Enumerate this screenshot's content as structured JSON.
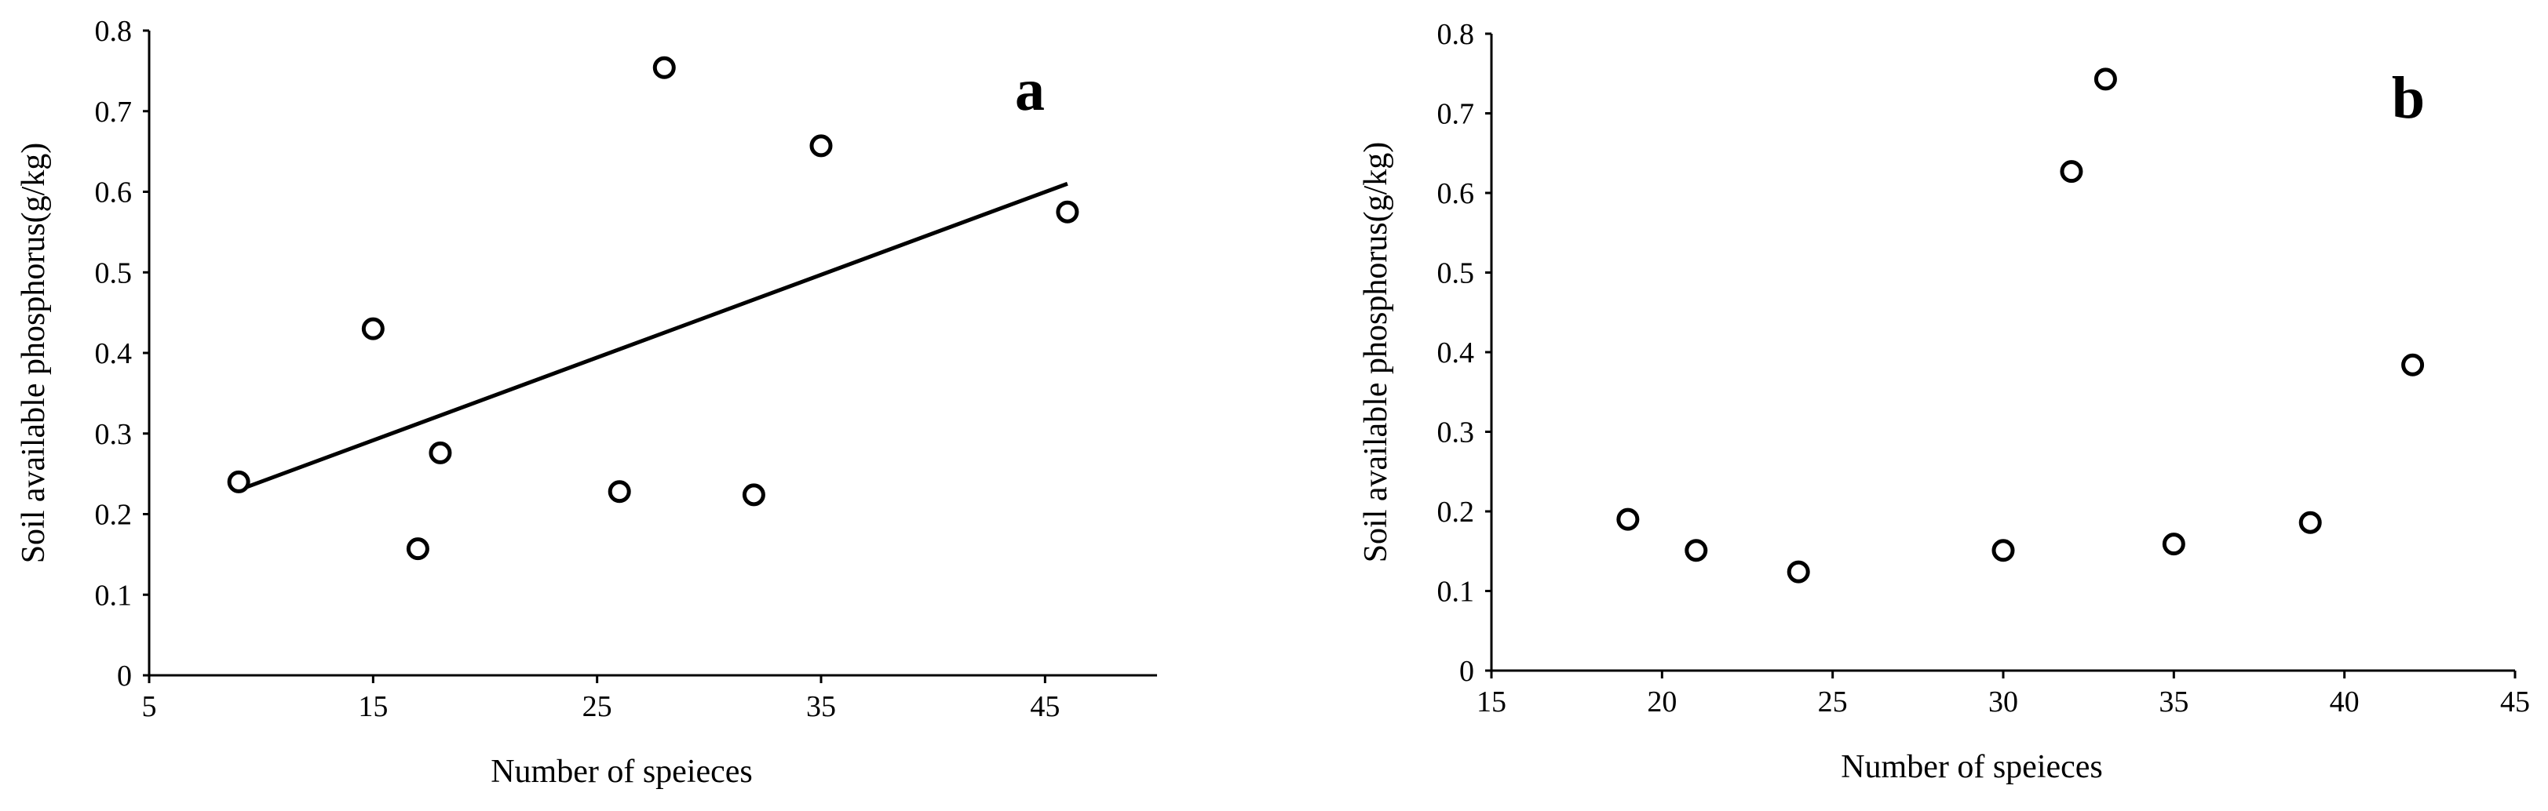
{
  "chart_data": [
    {
      "type": "scatter",
      "label": "a",
      "xlabel": "Number of speieces",
      "ylabel": "Soil available phosphorus(g/kg)",
      "x": [
        9,
        15,
        17,
        18,
        26,
        28,
        32,
        35,
        46
      ],
      "values": [
        0.24,
        0.43,
        0.157,
        0.276,
        0.228,
        0.754,
        0.224,
        0.657,
        0.575
      ],
      "color": "#000000",
      "trendline": {
        "x": [
          9,
          46
        ],
        "values": [
          0.23,
          0.61
        ]
      },
      "xlim": [
        5,
        50
      ],
      "xticks": [
        5,
        15,
        25,
        35,
        45
      ],
      "ylim": [
        0,
        0.8
      ],
      "yticks": [
        0,
        0.1,
        0.2,
        0.3,
        0.4,
        0.5,
        0.6,
        0.7,
        0.8
      ]
    },
    {
      "type": "scatter",
      "label": "b",
      "xlabel": "Number of speieces",
      "ylabel": "Soil available phosphorus(g/kg)",
      "x": [
        19,
        21,
        24,
        30,
        32,
        33,
        35,
        39,
        42
      ],
      "values": [
        0.19,
        0.151,
        0.124,
        0.151,
        0.627,
        0.743,
        0.159,
        0.186,
        0.384
      ],
      "color": "#000000",
      "xlim": [
        15,
        45
      ],
      "xticks": [
        15,
        20,
        25,
        30,
        35,
        40,
        45
      ],
      "ylim": [
        0,
        0.8
      ],
      "yticks": [
        0,
        0.1,
        0.2,
        0.3,
        0.4,
        0.5,
        0.6,
        0.7,
        0.8
      ]
    }
  ]
}
